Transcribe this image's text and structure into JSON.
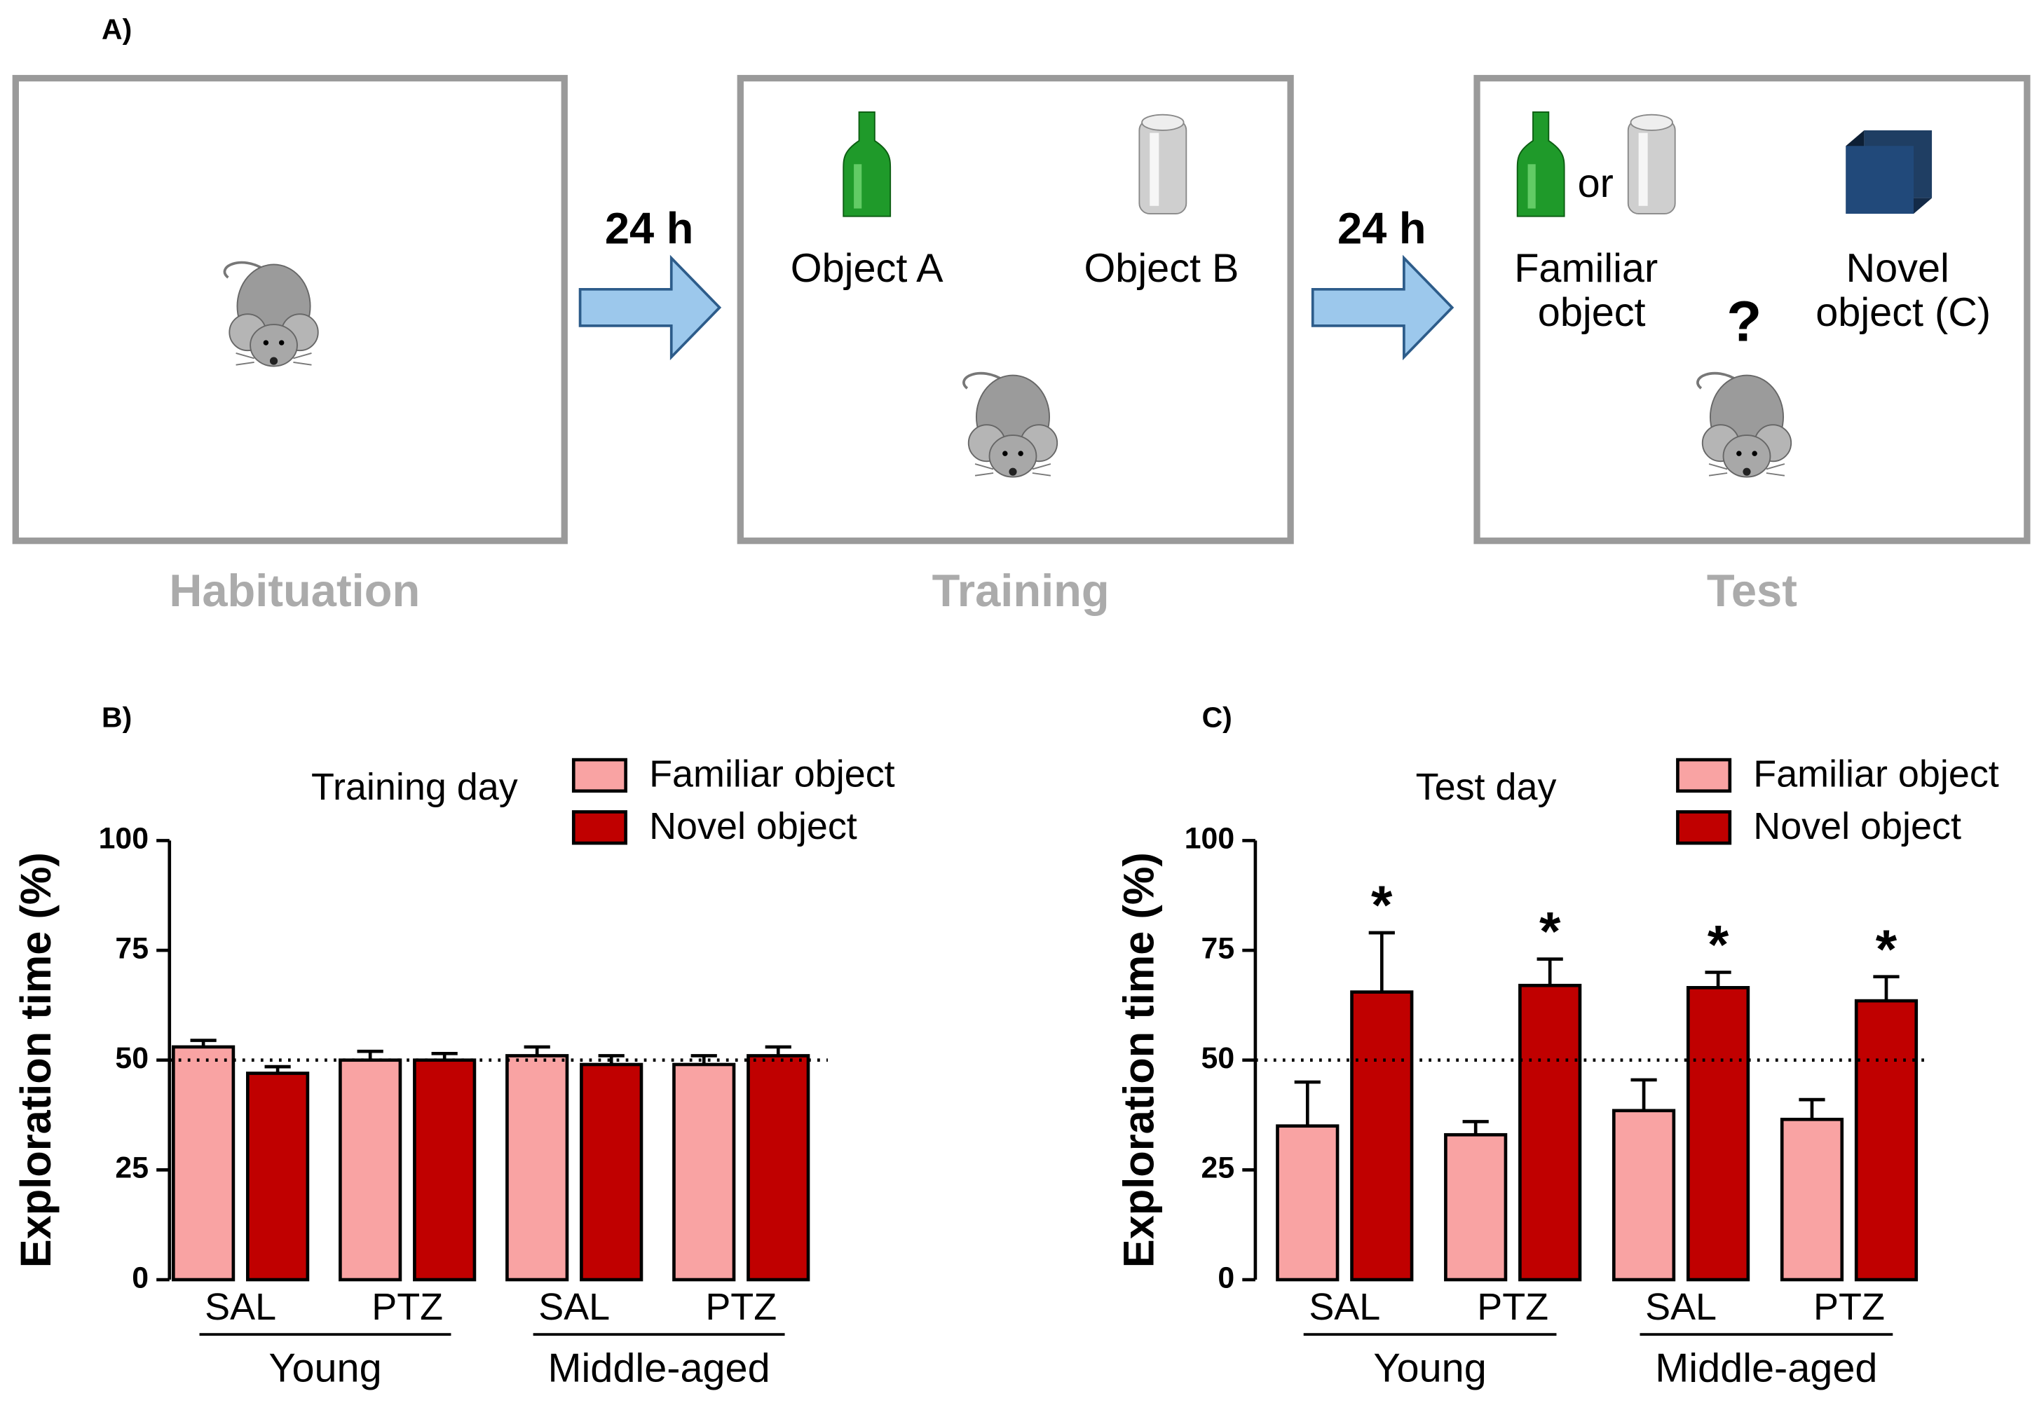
{
  "panel_a": {
    "label": "A)",
    "stages": [
      "Habituation",
      "Training",
      "Test"
    ],
    "intervals": [
      "24 h",
      "24 h"
    ],
    "training_objects": [
      "Object A",
      "Object B"
    ],
    "test_choice": "or",
    "test_objects": [
      "Familiar object",
      "Novel object (C)"
    ],
    "question": "?"
  },
  "chart_data": [
    {
      "type": "bar",
      "panel": "B)",
      "title": "Training day",
      "y_label": "Exploration time (%)",
      "categories": [
        "SAL",
        "PTZ",
        "SAL",
        "PTZ"
      ],
      "groups": [
        "Young",
        "Middle-aged"
      ],
      "series": [
        {
          "name": "Familiar object",
          "color": "#f9a3a3",
          "values": [
            53,
            50,
            51,
            49
          ],
          "errors": [
            1.5,
            2,
            2,
            2
          ]
        },
        {
          "name": "Novel object",
          "color": "#c00000",
          "values": [
            47,
            50,
            49,
            51
          ],
          "errors": [
            1.5,
            1.5,
            2,
            2
          ]
        }
      ],
      "ylim": [
        0,
        100
      ],
      "yticks": [
        0,
        25,
        50,
        75,
        100
      ],
      "reference_line": 50
    },
    {
      "type": "bar",
      "panel": "C)",
      "title": "Test day",
      "y_label": "Exploration time (%)",
      "categories": [
        "SAL",
        "PTZ",
        "SAL",
        "PTZ"
      ],
      "groups": [
        "Young",
        "Middle-aged"
      ],
      "series": [
        {
          "name": "Familiar object",
          "color": "#f9a3a3",
          "values": [
            35,
            33,
            38.5,
            36.5
          ],
          "errors": [
            10,
            3,
            7,
            4.5
          ]
        },
        {
          "name": "Novel object",
          "color": "#c00000",
          "values": [
            65.5,
            67,
            66.5,
            63.5
          ],
          "errors": [
            13.5,
            6,
            3.5,
            5.5
          ],
          "annotations": [
            "*",
            "*",
            "*",
            "*"
          ]
        }
      ],
      "ylim": [
        0,
        100
      ],
      "yticks": [
        0,
        25,
        50,
        75,
        100
      ],
      "reference_line": 50
    }
  ]
}
